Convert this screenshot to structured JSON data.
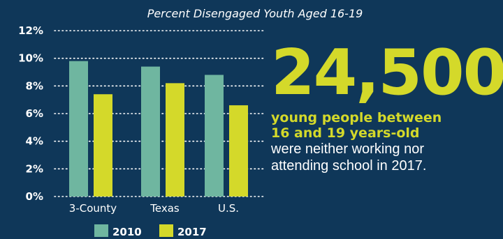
{
  "chart_data": {
    "type": "bar",
    "title": "Percent Disengaged Youth Aged 16-19",
    "categories": [
      "3-County",
      "Texas",
      "U.S."
    ],
    "series": [
      {
        "name": "2010",
        "values": [
          9.8,
          9.4,
          8.8
        ],
        "color": "#6fb6a0"
      },
      {
        "name": "2017",
        "values": [
          7.4,
          8.2,
          6.6
        ],
        "color": "#d4d92a"
      }
    ],
    "ylim": [
      0,
      12
    ],
    "y_ticks": [
      "0%",
      "2%",
      "4%",
      "6%",
      "8%",
      "10%",
      "12%"
    ],
    "grid": true,
    "legend": "bottom"
  },
  "stat": {
    "number": "24,500",
    "bold_lines": [
      "young people between",
      "16 and 19 years-old"
    ],
    "plain_lines": [
      "were neither working nor",
      "attending school in 2017."
    ]
  },
  "colors": {
    "background": "#0f3759",
    "accent": "#d4d92a",
    "teal": "#6fb6a0",
    "text": "#ffffff"
  }
}
